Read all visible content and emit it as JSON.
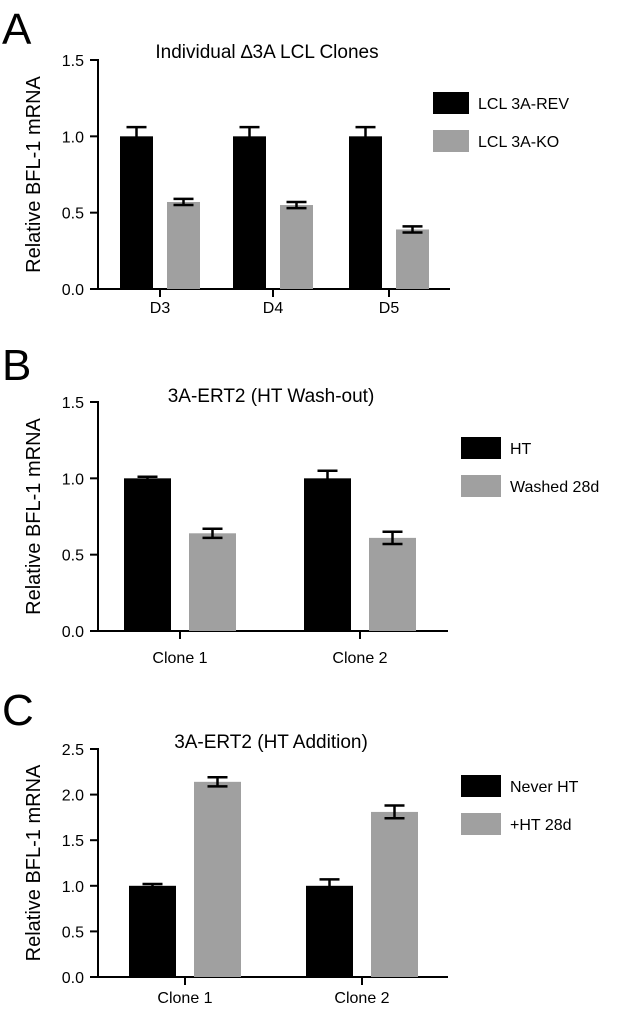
{
  "chart_data": [
    {
      "type": "bar",
      "panel": "A",
      "title": "Individual ∆3A LCL Clones",
      "ylabel": "Relative BFL-1 mRNA",
      "xlabel": "",
      "ylim": [
        0,
        1.5
      ],
      "yticks": [
        "0.0",
        "0.5",
        "1.0",
        "1.5"
      ],
      "categories": [
        "D3",
        "D4",
        "D5"
      ],
      "legend_position": "right",
      "series": [
        {
          "name": "LCL 3A-REV",
          "color": "#000000",
          "values": [
            1.0,
            1.0,
            1.0
          ],
          "errors": [
            0.06,
            0.06,
            0.06
          ]
        },
        {
          "name": "LCL 3A-KO",
          "color": "#a0a0a0",
          "values": [
            0.57,
            0.55,
            0.39
          ],
          "errors": [
            0.02,
            0.02,
            0.02
          ]
        }
      ]
    },
    {
      "type": "bar",
      "panel": "B",
      "title": "3A-ERT2 (HT Wash-out)",
      "ylabel": "Relative BFL-1 mRNA",
      "xlabel": "",
      "ylim": [
        0,
        1.5
      ],
      "yticks": [
        "0.0",
        "0.5",
        "1.0",
        "1.5"
      ],
      "categories": [
        "Clone 1",
        "Clone 2"
      ],
      "legend_position": "right",
      "series": [
        {
          "name": "HT",
          "color": "#000000",
          "values": [
            1.0,
            1.0
          ],
          "errors": [
            0.01,
            0.05
          ]
        },
        {
          "name": "Washed 28d",
          "color": "#a0a0a0",
          "values": [
            0.64,
            0.61
          ],
          "errors": [
            0.03,
            0.04
          ]
        }
      ]
    },
    {
      "type": "bar",
      "panel": "C",
      "title": "3A-ERT2 (HT Addition)",
      "ylabel": "Relative BFL-1 mRNA",
      "xlabel": "",
      "ylim": [
        0,
        2.5
      ],
      "yticks": [
        "0.0",
        "0.5",
        "1.0",
        "1.5",
        "2.0",
        "2.5"
      ],
      "categories": [
        "Clone 1",
        "Clone 2"
      ],
      "legend_position": "right",
      "series": [
        {
          "name": "Never HT",
          "color": "#000000",
          "values": [
            1.0,
            1.0
          ],
          "errors": [
            0.02,
            0.07
          ]
        },
        {
          "name": "+HT 28d",
          "color": "#a0a0a0",
          "values": [
            2.14,
            1.81
          ],
          "errors": [
            0.05,
            0.07
          ]
        }
      ]
    }
  ]
}
